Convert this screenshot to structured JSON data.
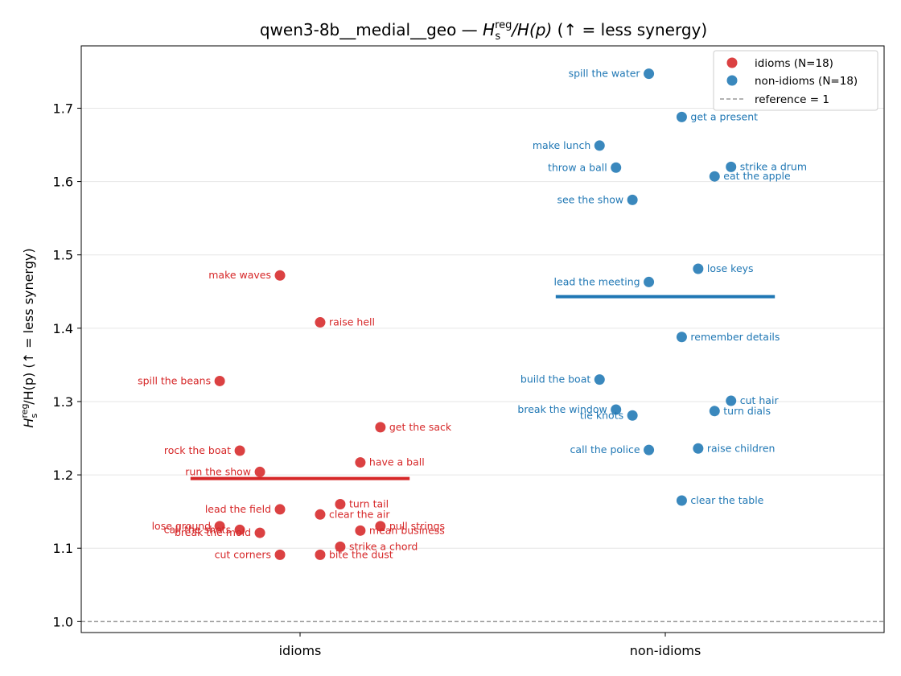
{
  "chart_data": {
    "type": "scatter",
    "title_main": "qwen3-8b__medial__geo — ",
    "title_h": "H",
    "title_sub": "s",
    "title_sup": "reg",
    "title_mid": "/H(p)",
    "title_tail": "  (↑ = less synergy)",
    "ylabel_h": "H",
    "ylabel_sub": "s",
    "ylabel_sup": "reg",
    "ylabel_rest": "/H(p)  (↑ = less synergy)",
    "categories": [
      "idioms",
      "non-idioms"
    ],
    "ylim": [
      0.985,
      1.785
    ],
    "yticks": [
      "1.0",
      "1.1",
      "1.2",
      "1.3",
      "1.4",
      "1.5",
      "1.6",
      "1.7"
    ],
    "grid": "horizontal",
    "reference": 1.0,
    "colors": {
      "idioms": "#d62728",
      "non_idioms": "#1f77b4",
      "reference": "#999999"
    },
    "legend": {
      "placement": "top-right",
      "entries": [
        "idioms (N=18)",
        "non-idioms (N=18)",
        "reference = 1"
      ]
    },
    "series": [
      {
        "name": "idioms (N=18)",
        "category": 0,
        "mean": 1.195,
        "points": [
          {
            "label": "make waves",
            "x": -0.055,
            "y": 1.472,
            "side": "left"
          },
          {
            "label": "raise hell",
            "x": 0.055,
            "y": 1.408,
            "side": "right"
          },
          {
            "label": "spill the beans",
            "x": -0.22,
            "y": 1.328,
            "side": "left"
          },
          {
            "label": "get the sack",
            "x": 0.22,
            "y": 1.265,
            "side": "right"
          },
          {
            "label": "rock the boat",
            "x": -0.165,
            "y": 1.233,
            "side": "left"
          },
          {
            "label": "have a ball",
            "x": 0.165,
            "y": 1.217,
            "side": "right"
          },
          {
            "label": "run the show",
            "x": -0.11,
            "y": 1.204,
            "side": "left"
          },
          {
            "label": "turn tail",
            "x": 0.11,
            "y": 1.16,
            "side": "right"
          },
          {
            "label": "lead the field",
            "x": -0.055,
            "y": 1.153,
            "side": "left"
          },
          {
            "label": "clear the air",
            "x": 0.055,
            "y": 1.146,
            "side": "right"
          },
          {
            "label": "lose ground",
            "x": -0.22,
            "y": 1.13,
            "side": "left"
          },
          {
            "label": "pull strings",
            "x": 0.22,
            "y": 1.13,
            "side": "right"
          },
          {
            "label": "call the shots",
            "x": -0.165,
            "y": 1.125,
            "side": "left"
          },
          {
            "label": "mean business",
            "x": 0.165,
            "y": 1.124,
            "side": "right"
          },
          {
            "label": "break the mold",
            "x": -0.11,
            "y": 1.121,
            "side": "left"
          },
          {
            "label": "strike a chord",
            "x": 0.11,
            "y": 1.102,
            "side": "right"
          },
          {
            "label": "cut corners",
            "x": -0.055,
            "y": 1.091,
            "side": "left"
          },
          {
            "label": "bite the dust",
            "x": 0.055,
            "y": 1.091,
            "side": "right"
          }
        ]
      },
      {
        "name": "non-idioms (N=18)",
        "category": 1,
        "mean": 1.443,
        "points": [
          {
            "label": "spill the water",
            "x": -0.045,
            "y": 1.747,
            "side": "left"
          },
          {
            "label": "get a present",
            "x": 0.045,
            "y": 1.688,
            "side": "right"
          },
          {
            "label": "make lunch",
            "x": -0.18,
            "y": 1.649,
            "side": "left"
          },
          {
            "label": "strike a drum",
            "x": 0.18,
            "y": 1.62,
            "side": "right"
          },
          {
            "label": "throw a ball",
            "x": -0.135,
            "y": 1.619,
            "side": "left"
          },
          {
            "label": "eat the apple",
            "x": 0.135,
            "y": 1.607,
            "side": "right"
          },
          {
            "label": "see the show",
            "x": -0.09,
            "y": 1.575,
            "side": "left"
          },
          {
            "label": "lose keys",
            "x": 0.09,
            "y": 1.481,
            "side": "right"
          },
          {
            "label": "lead the meeting",
            "x": -0.045,
            "y": 1.463,
            "side": "left"
          },
          {
            "label": "remember details",
            "x": 0.045,
            "y": 1.388,
            "side": "right"
          },
          {
            "label": "build the boat",
            "x": -0.18,
            "y": 1.33,
            "side": "left"
          },
          {
            "label": "cut hair",
            "x": 0.18,
            "y": 1.301,
            "side": "right"
          },
          {
            "label": "break the window",
            "x": -0.135,
            "y": 1.289,
            "side": "left"
          },
          {
            "label": "turn dials",
            "x": 0.135,
            "y": 1.287,
            "side": "right"
          },
          {
            "label": "tie knots",
            "x": -0.09,
            "y": 1.281,
            "side": "left"
          },
          {
            "label": "raise children",
            "x": 0.09,
            "y": 1.236,
            "side": "right"
          },
          {
            "label": "call the police",
            "x": -0.045,
            "y": 1.234,
            "side": "left"
          },
          {
            "label": "clear the table",
            "x": 0.045,
            "y": 1.165,
            "side": "right"
          }
        ]
      }
    ]
  }
}
